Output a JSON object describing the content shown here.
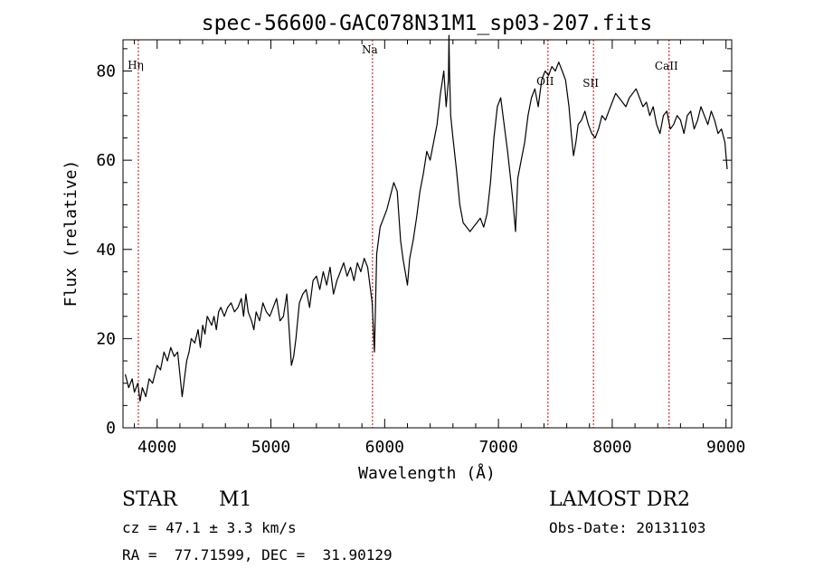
{
  "chart_data": {
    "type": "line",
    "title": "spec-56600-GAC078N31M1_sp03-207.fits",
    "xlabel": "Wavelength (Å)",
    "ylabel": "Flux (relative)",
    "xlim": [
      3700,
      9050
    ],
    "ylim": [
      0,
      87
    ],
    "xticks": [
      4000,
      5000,
      6000,
      7000,
      8000,
      9000
    ],
    "yticks": [
      0,
      20,
      40,
      60,
      80
    ],
    "grid": false,
    "line_color": "#000000",
    "marker_color": "#cc0000",
    "lines": [
      {
        "label": "Hη",
        "x": 3835
      },
      {
        "label": "Na",
        "x": 5893
      },
      {
        "label": "OII",
        "x": 7435
      },
      {
        "label": "SII",
        "x": 7835
      },
      {
        "label": "CaII",
        "x": 8500
      }
    ],
    "series": [
      {
        "x": [
          3720,
          3750,
          3780,
          3800,
          3830,
          3850,
          3870,
          3900,
          3930,
          3960,
          4000,
          4030,
          4060,
          4090,
          4120,
          4150,
          4180,
          4200,
          4220,
          4240,
          4260,
          4280,
          4300,
          4330,
          4360,
          4380,
          4400,
          4420,
          4440,
          4460,
          4480,
          4500,
          4520,
          4540,
          4560,
          4590,
          4620,
          4650,
          4680,
          4710,
          4740,
          4760,
          4780,
          4800,
          4830,
          4850,
          4870,
          4900,
          4930,
          4960,
          4990,
          5020,
          5050,
          5080,
          5110,
          5140,
          5160,
          5180,
          5200,
          5220,
          5250,
          5280,
          5310,
          5340,
          5370,
          5400,
          5430,
          5460,
          5490,
          5520,
          5550,
          5580,
          5610,
          5640,
          5670,
          5700,
          5730,
          5760,
          5790,
          5820,
          5850,
          5870,
          5890,
          5910,
          5930,
          5960,
          5990,
          6020,
          6050,
          6080,
          6110,
          6140,
          6160,
          6180,
          6200,
          6220,
          6250,
          6280,
          6310,
          6340,
          6370,
          6400,
          6430,
          6460,
          6490,
          6520,
          6540,
          6560,
          6565,
          6570,
          6580,
          6600,
          6630,
          6660,
          6690,
          6720,
          6750,
          6780,
          6810,
          6840,
          6870,
          6900,
          6930,
          6960,
          6990,
          7020,
          7050,
          7080,
          7110,
          7130,
          7150,
          7170,
          7200,
          7230,
          7260,
          7290,
          7320,
          7350,
          7380,
          7410,
          7440,
          7470,
          7500,
          7530,
          7560,
          7590,
          7620,
          7640,
          7660,
          7680,
          7700,
          7730,
          7760,
          7790,
          7820,
          7850,
          7880,
          7910,
          7940,
          7970,
          8000,
          8030,
          8060,
          8090,
          8120,
          8150,
          8180,
          8210,
          8240,
          8270,
          8300,
          8330,
          8360,
          8390,
          8420,
          8450,
          8480,
          8510,
          8540,
          8570,
          8600,
          8630,
          8660,
          8690,
          8720,
          8750,
          8780,
          8810,
          8840,
          8870,
          8900,
          8930,
          8960,
          8990,
          9010
        ],
        "values": [
          12,
          9,
          11,
          8,
          10,
          6,
          9,
          7,
          11,
          10,
          14,
          13,
          17,
          15,
          18,
          16,
          17,
          12,
          7,
          11,
          15,
          17,
          20,
          19,
          22,
          18,
          23,
          21,
          25,
          24,
          23,
          25,
          22,
          26,
          27,
          25,
          27,
          28,
          26,
          27,
          29,
          25,
          30,
          26,
          24,
          22,
          26,
          24,
          28,
          26,
          25,
          27,
          29,
          24,
          25,
          30,
          22,
          14,
          16,
          20,
          28,
          30,
          31,
          27,
          33,
          34,
          31,
          35,
          32,
          36,
          30,
          33,
          35,
          37,
          34,
          36,
          33,
          37,
          35,
          38,
          36,
          32,
          28,
          17,
          39,
          45,
          47,
          49,
          52,
          55,
          53,
          42,
          38,
          35,
          32,
          38,
          42,
          47,
          53,
          57,
          62,
          60,
          64,
          68,
          75,
          80,
          72,
          78,
          88,
          80,
          70,
          65,
          58,
          50,
          46,
          45,
          44,
          45,
          46,
          47,
          45,
          48,
          55,
          65,
          72,
          74,
          68,
          62,
          55,
          50,
          44,
          56,
          60,
          64,
          70,
          74,
          76,
          72,
          78,
          80,
          79,
          81,
          80,
          82,
          80,
          78,
          72,
          66,
          61,
          64,
          68,
          69,
          71,
          68,
          66,
          65,
          67,
          70,
          69,
          71,
          73,
          75,
          74,
          73,
          72,
          74,
          75,
          76,
          74,
          72,
          73,
          70,
          72,
          68,
          66,
          70,
          71,
          67,
          68,
          70,
          69,
          66,
          70,
          71,
          67,
          69,
          72,
          70,
          68,
          71,
          69,
          66,
          67,
          64,
          58
        ]
      }
    ]
  },
  "info": {
    "object_class": "STAR",
    "subclass": "M1",
    "survey": "LAMOST DR2",
    "redshift": "cz = 47.1 ± 3.3 km/s",
    "obs_date": "Obs-Date: 20131103",
    "coords": "RA =  77.71599, DEC =  31.90129"
  }
}
